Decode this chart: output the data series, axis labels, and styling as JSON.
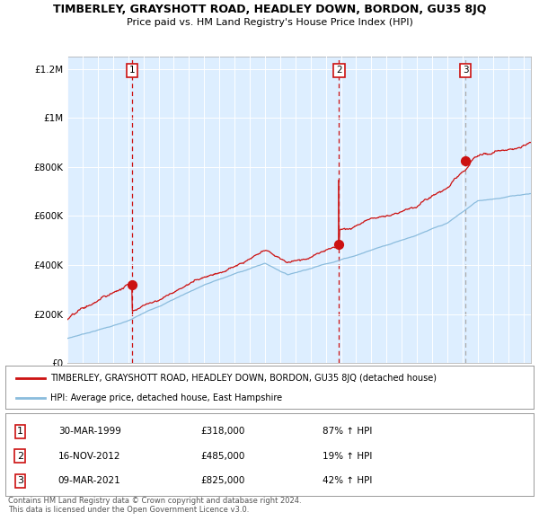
{
  "title": "TIMBERLEY, GRAYSHOTT ROAD, HEADLEY DOWN, BORDON, GU35 8JQ",
  "subtitle": "Price paid vs. HM Land Registry's House Price Index (HPI)",
  "legend_line1": "TIMBERLEY, GRAYSHOTT ROAD, HEADLEY DOWN, BORDON, GU35 8JQ (detached house)",
  "legend_line2": "HPI: Average price, detached house, East Hampshire",
  "footer1": "Contains HM Land Registry data © Crown copyright and database right 2024.",
  "footer2": "This data is licensed under the Open Government Licence v3.0.",
  "sale1_date": "30-MAR-1999",
  "sale1_price": 318000,
  "sale1_pct": "87% ↑ HPI",
  "sale2_date": "16-NOV-2012",
  "sale2_price": 485000,
  "sale2_pct": "19% ↑ HPI",
  "sale3_date": "09-MAR-2021",
  "sale3_price": 825000,
  "sale3_pct": "42% ↑ HPI",
  "sale1_year": 1999.25,
  "sale2_year": 2012.88,
  "sale3_year": 2021.19,
  "hpi_color": "#8bbcdd",
  "property_color": "#cc1111",
  "bg_color": "#ddeeff",
  "ylim_max": 1250000,
  "xlim_start": 1995.0,
  "xlim_end": 2025.5,
  "yticks": [
    0,
    200000,
    400000,
    600000,
    800000,
    1000000,
    1200000
  ],
  "ylabels": [
    "£0",
    "£200K",
    "£400K",
    "£600K",
    "£800K",
    "£1M",
    "£1.2M"
  ]
}
